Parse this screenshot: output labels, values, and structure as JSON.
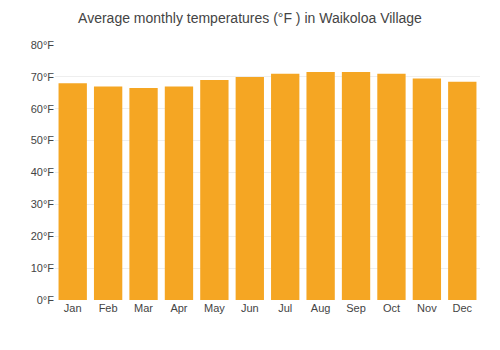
{
  "chart_data": {
    "type": "bar",
    "title": "Average monthly temperatures (°F ) in Waikoloa Village",
    "categories": [
      "Jan",
      "Feb",
      "Mar",
      "Apr",
      "May",
      "Jun",
      "Jul",
      "Aug",
      "Sep",
      "Oct",
      "Nov",
      "Dec"
    ],
    "values": [
      68,
      67,
      66.5,
      67,
      69,
      70,
      71,
      71.5,
      71.5,
      71,
      69.5,
      68.5
    ],
    "color": "#F5A623",
    "ylim": [
      0,
      80
    ],
    "yticks": [
      {
        "value": 0,
        "label": "0°F"
      },
      {
        "value": 10,
        "label": "10°F"
      },
      {
        "value": 20,
        "label": "20°F"
      },
      {
        "value": 30,
        "label": "30°F"
      },
      {
        "value": 40,
        "label": "40°F"
      },
      {
        "value": 50,
        "label": "50°F"
      },
      {
        "value": 60,
        "label": "60°F"
      },
      {
        "value": 70,
        "label": "70°F"
      },
      {
        "value": 80,
        "label": "80°F"
      }
    ],
    "grid": true
  }
}
